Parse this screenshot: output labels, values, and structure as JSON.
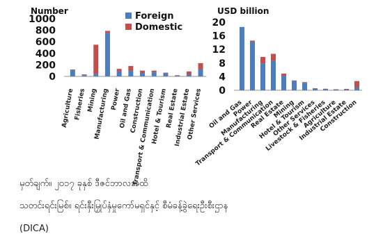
{
  "chart_data": [
    {
      "type": "bar",
      "ylabel": "Number",
      "yticks": [
        "1000",
        "800",
        "600",
        "400",
        "200",
        "0"
      ],
      "ylim": [
        0,
        1000
      ],
      "legend": "top-right",
      "categories": [
        "Agriculture",
        "Fisheries",
        "Mining",
        "Manufacturing",
        "Power",
        "Oil and Gas",
        "Construction",
        "Transport & Communication",
        "Hotel & Tourism",
        "Real Estate",
        "Industrial Estate",
        "Other Services"
      ],
      "series": [
        {
          "name": "Foreign",
          "color": "#4a7ebf",
          "values": [
            110,
            20,
            40,
            750,
            85,
            95,
            60,
            70,
            55,
            15,
            30,
            120
          ]
        },
        {
          "name": "Domestic",
          "color": "#c0504d",
          "values": [
            10,
            15,
            510,
            40,
            45,
            85,
            40,
            30,
            10,
            5,
            55,
            110
          ]
        }
      ]
    },
    {
      "type": "bar",
      "ylabel": "USD billion",
      "yticks": [
        "20",
        "16",
        "12",
        "8",
        "4",
        "0"
      ],
      "ylim": [
        0,
        20
      ],
      "categories": [
        "Oil and Gas",
        "Power",
        "Manufacturing",
        "Transport & Communication",
        "Real Estate",
        "Mining",
        "Hotel & Tourism",
        "Other Services",
        "Livestock & Fisheries",
        "Agriculture",
        "Industrial Estate",
        "Construction"
      ],
      "series": [
        {
          "name": "Foreign",
          "color": "#4a7ebf",
          "values": [
            18.6,
            14.2,
            7.8,
            8.6,
            4.2,
            2.8,
            2.2,
            0.5,
            0.4,
            0.2,
            0.2,
            0.8
          ]
        },
        {
          "name": "Domestic",
          "color": "#c0504d",
          "values": [
            0.0,
            0.4,
            2.0,
            2.1,
            0.7,
            0.1,
            0.2,
            0.1,
            0.05,
            0.1,
            0.2,
            1.9
          ]
        }
      ]
    }
  ],
  "caption": {
    "line1": "မှတ်ချက်။ ၂၀၁၇ ခုနှစ် ဒီဇင်ဘာလအထိ",
    "line2": "သတင်းရင်းမြစ်။  ရင်းနှီးမြှုပ်နှံမှုကော်မရှင်နှင့်  စီမံခန့်ခွဲရေးဦးစီးဌာန",
    "line3": "(DICA)"
  }
}
